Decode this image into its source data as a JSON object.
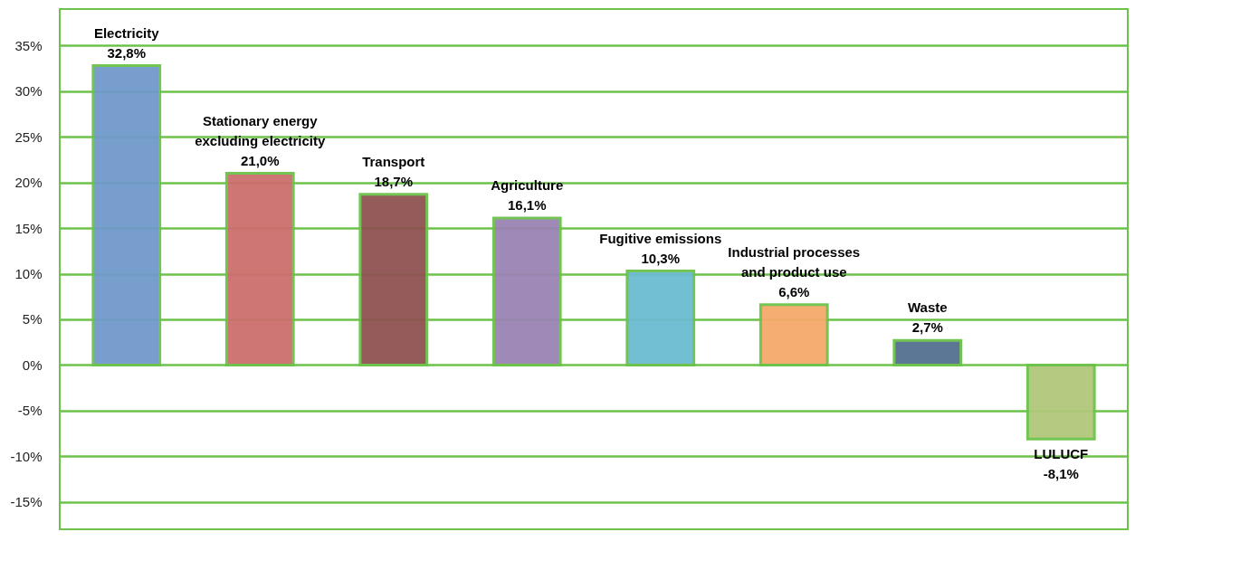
{
  "chart_data": {
    "type": "bar",
    "categories": [
      "Electricity",
      "Stationary energy excluding electricity",
      "Transport",
      "Agriculture",
      "Fugitive emissions",
      "Industrial processes and product use",
      "Waste",
      "LULUCF"
    ],
    "values": [
      32.8,
      21.0,
      18.7,
      16.1,
      10.3,
      6.6,
      2.7,
      -8.1
    ],
    "value_labels": [
      "32,8%",
      "21,0%",
      "18,7%",
      "16,1%",
      "10,3%",
      "6,6%",
      "2,7%",
      "-8,1%"
    ],
    "colors": [
      "#7199cb",
      "#cb6f6d",
      "#8f5352",
      "#9a84b4",
      "#6bbbd0",
      "#f5a96a",
      "#546f91",
      "#b0c87a"
    ],
    "ylim": [
      -18,
      39
    ],
    "yticks": [
      {
        "value": -15,
        "label": "-15%"
      },
      {
        "value": -10,
        "label": "-10%"
      },
      {
        "value": -5,
        "label": "-5%"
      },
      {
        "value": 0,
        "label": "0%"
      },
      {
        "value": 5,
        "label": "5%"
      },
      {
        "value": 10,
        "label": "10%"
      },
      {
        "value": 15,
        "label": "15%"
      },
      {
        "value": 20,
        "label": "20%"
      },
      {
        "value": 25,
        "label": "25%"
      },
      {
        "value": 30,
        "label": "30%"
      },
      {
        "value": 35,
        "label": "35%"
      }
    ],
    "grid": "y",
    "legend": false,
    "tick_labels": "y"
  }
}
